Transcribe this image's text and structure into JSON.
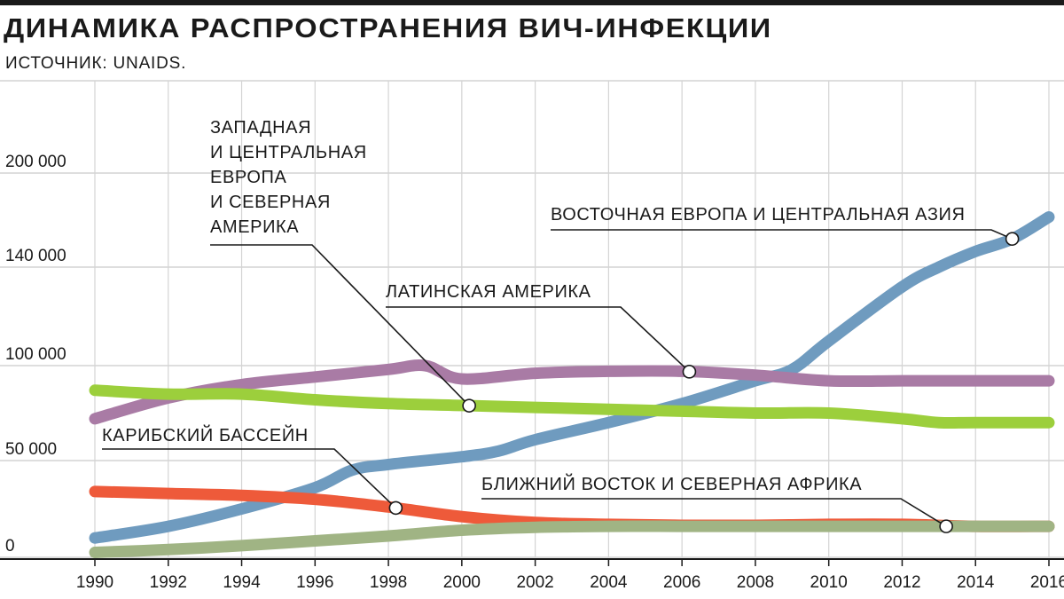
{
  "chart_data": {
    "type": "line",
    "title": "ДИНАМИКА РАСПРОСТРАНЕНИЯ ВИЧ-ИНФЕКЦИИ",
    "subtitle": "ИСТОЧНИК: UNAIDS.",
    "xlabel": "",
    "ylabel": "",
    "x_ticks": [
      "1990",
      "1992",
      "1994",
      "1996",
      "1998",
      "2000",
      "2002",
      "2004",
      "2006",
      "2008",
      "2010",
      "2012",
      "2014",
      "2016"
    ],
    "y_ticks": [
      {
        "value": 0,
        "label": "0"
      },
      {
        "value": 50000,
        "label": "50 000"
      },
      {
        "value": 100000,
        "label": "100 000"
      },
      {
        "value": 140000,
        "label": "140 000"
      },
      {
        "value": 200000,
        "label": "200 000"
      }
    ],
    "grid": "vertical",
    "series": [
      {
        "name": "ВОСТОЧНАЯ ЕВРОПА И ЦЕНТРАЛЬНАЯ АЗИЯ",
        "color": "#6f9bbf",
        "label_lines": [
          "ВОСТОЧНАЯ ЕВРОПА И ЦЕНТРАЛЬНАЯ АЗИЯ"
        ],
        "marker_year": 2015,
        "points": [
          [
            1990,
            10000
          ],
          [
            1992,
            16000
          ],
          [
            1994,
            25000
          ],
          [
            1996,
            36000
          ],
          [
            1997,
            45000
          ],
          [
            1998,
            48000
          ],
          [
            2000,
            52000
          ],
          [
            2001,
            55000
          ],
          [
            2002,
            61000
          ],
          [
            2004,
            70000
          ],
          [
            2006,
            80000
          ],
          [
            2008,
            92000
          ],
          [
            2009,
            98000
          ],
          [
            2010,
            110000
          ],
          [
            2012,
            132000
          ],
          [
            2013,
            140000
          ],
          [
            2014,
            150000
          ],
          [
            2015,
            158000
          ],
          [
            2016,
            172000
          ]
        ]
      },
      {
        "name": "ЛАТИНСКАЯ АМЕРИКА",
        "color": "#a97ba5",
        "label_lines": [
          "ЛАТИНСКАЯ АМЕРИКА"
        ],
        "marker_year": 2006.2,
        "points": [
          [
            1990,
            72000
          ],
          [
            1992,
            83000
          ],
          [
            1994,
            90000
          ],
          [
            1996,
            94000
          ],
          [
            1998,
            98000
          ],
          [
            1999,
            100000
          ],
          [
            2000,
            93000
          ],
          [
            2002,
            96000
          ],
          [
            2004,
            97000
          ],
          [
            2006,
            97000
          ],
          [
            2008,
            95000
          ],
          [
            2010,
            92000
          ],
          [
            2012,
            92000
          ],
          [
            2014,
            92000
          ],
          [
            2016,
            92000
          ]
        ]
      },
      {
        "name": "ЗАПАДНАЯ И ЦЕНТРАЛЬНАЯ ЕВРОПА И СЕВЕРНАЯ АМЕРИКА",
        "color": "#9ccf3c",
        "label_lines": [
          "ЗАПАДНАЯ",
          "И ЦЕНТРАЛЬНАЯ",
          "ЕВРОПА",
          "И СЕВЕРНАЯ",
          "АМЕРИКА"
        ],
        "marker_year": 2000.2,
        "points": [
          [
            1990,
            87000
          ],
          [
            1992,
            85000
          ],
          [
            1994,
            85000
          ],
          [
            1996,
            82000
          ],
          [
            1998,
            80000
          ],
          [
            2000,
            79000
          ],
          [
            2002,
            78000
          ],
          [
            2004,
            77000
          ],
          [
            2006,
            76000
          ],
          [
            2008,
            75000
          ],
          [
            2010,
            75000
          ],
          [
            2012,
            72000
          ],
          [
            2013,
            70000
          ],
          [
            2014,
            70000
          ],
          [
            2016,
            70000
          ]
        ]
      },
      {
        "name": "КАРИБСКИЙ БАССЕЙН",
        "color": "#ee5a3a",
        "label_lines": [
          "КАРИБСКИЙ БАССЕЙН"
        ],
        "marker_year": 1998.2,
        "points": [
          [
            1990,
            34000
          ],
          [
            1992,
            33000
          ],
          [
            1994,
            32000
          ],
          [
            1996,
            30000
          ],
          [
            1998,
            26000
          ],
          [
            2000,
            21000
          ],
          [
            2002,
            18000
          ],
          [
            2004,
            17000
          ],
          [
            2006,
            16500
          ],
          [
            2008,
            16500
          ],
          [
            2010,
            17000
          ],
          [
            2012,
            17000
          ],
          [
            2014,
            16000
          ],
          [
            2016,
            16000
          ]
        ]
      },
      {
        "name": "БЛИЖНИЙ ВОСТОК И СЕВЕРНАЯ АФРИКА",
        "color": "#a0b484",
        "label_lines": [
          "БЛИЖНИЙ ВОСТОК И СЕВЕРНАЯ АФРИКА"
        ],
        "marker_year": 2013.2,
        "points": [
          [
            1990,
            2500
          ],
          [
            1992,
            4000
          ],
          [
            1994,
            6000
          ],
          [
            1996,
            8500
          ],
          [
            1998,
            11000
          ],
          [
            2000,
            14000
          ],
          [
            2002,
            15500
          ],
          [
            2004,
            16000
          ],
          [
            2006,
            16000
          ],
          [
            2008,
            16000
          ],
          [
            2010,
            16000
          ],
          [
            2012,
            16000
          ],
          [
            2014,
            16000
          ],
          [
            2016,
            16000
          ]
        ]
      }
    ]
  }
}
